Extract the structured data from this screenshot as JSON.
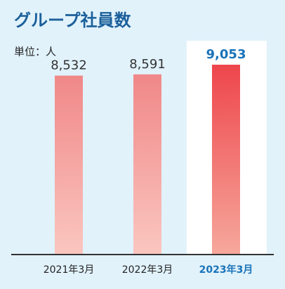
{
  "chart_data": {
    "type": "bar",
    "title": "グループ社員数",
    "unit_label": "単位：人",
    "categories": [
      "2021年3月",
      "2022年3月",
      "2023年3月"
    ],
    "values": [
      8532,
      8591,
      9053
    ],
    "value_labels": [
      "8,532",
      "8,591",
      "9,053"
    ],
    "colors": [
      [
        "#f08888",
        "#fbc6c0"
      ],
      [
        "#f08888",
        "#fbc6c0"
      ],
      [
        "#ee464c",
        "#f6a89c"
      ]
    ],
    "highlight": 2,
    "highlight_color": "#1a73b8"
  }
}
